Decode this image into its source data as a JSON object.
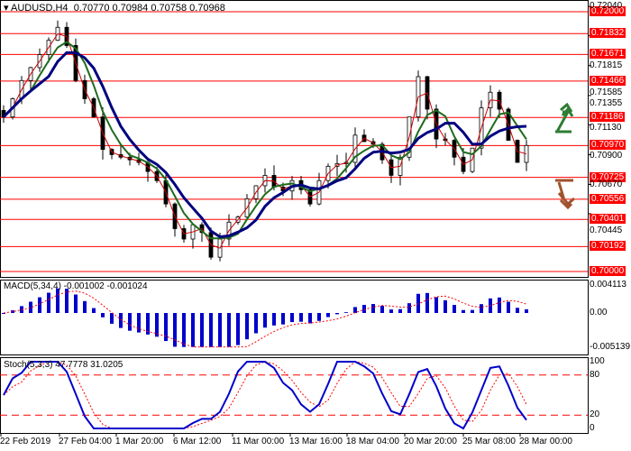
{
  "header": {
    "symbol": "AUDUSD,H4",
    "ohlc": "0.70770 0.70984 0.70758 0.70968"
  },
  "colors": {
    "level": "#ff0000",
    "bull_arrow": "#2e7d32",
    "bear_arrow": "#a0522d",
    "ma_slow": "#000080",
    "ma_mid": "#1e6b1e",
    "ma_fast": "#cc0000",
    "macd": "#0000cc",
    "stoch_main": "#0000cc",
    "stoch_signal": "#ff0000"
  },
  "chart_data": [
    {
      "type": "candlestick",
      "ylim": [
        0.7,
        0.72
      ],
      "axis_ticks": [
        "0.72040",
        "0.71815",
        "0.71585",
        "0.71355",
        "0.71130",
        "0.70900",
        "0.70670",
        "0.70445"
      ],
      "levels": [
        "0.72000",
        "0.71832",
        "0.71671",
        "0.71466",
        "0.71186",
        "0.70970",
        "0.70725",
        "0.70556",
        "0.70401",
        "0.70192",
        "0.70000"
      ],
      "close": [
        0.7119,
        0.7133,
        0.7147,
        0.7157,
        0.7167,
        0.7178,
        0.7188,
        0.7174,
        0.7147,
        0.7133,
        0.7119,
        0.7094,
        0.709,
        0.7088,
        0.7086,
        0.7084,
        0.7077,
        0.707,
        0.7052,
        0.7033,
        0.7025,
        0.7036,
        0.703,
        0.7011,
        0.7025,
        0.7038,
        0.7042,
        0.7056,
        0.7066,
        0.7074,
        0.7065,
        0.7062,
        0.707,
        0.7063,
        0.7052,
        0.707,
        0.7081,
        0.7083,
        0.7084,
        0.7105,
        0.71,
        0.7098,
        0.7086,
        0.7074,
        0.7088,
        0.7119,
        0.715,
        0.7125,
        0.7102,
        0.7101,
        0.7088,
        0.7077,
        0.7095,
        0.7126,
        0.7138,
        0.7125,
        0.7101,
        0.7084,
        0.7097
      ],
      "x_ticks": [
        "22 Feb 2019",
        "27 Feb 04:00",
        "1 Mar 20:00",
        "6 Mar 12:00",
        "11 Mar 00:00",
        "13 Mar 16:00",
        "18 Mar 04:00",
        "20 Mar 20:00",
        "25 Mar 08:00",
        "28 Mar 00:00"
      ]
    },
    {
      "type": "bar",
      "label": "MACD(5,34,4) -0.001002 -0.001024",
      "ylim": [
        -0.005139,
        0.004113
      ],
      "ticks": [
        "0.004113",
        "0.00",
        "-0.005139"
      ]
    },
    {
      "type": "line",
      "label": "Stoch(5,3,3) 47.7778 31.0205",
      "ylim": [
        0,
        100
      ],
      "ticks": [
        "100",
        "80",
        "20",
        "0"
      ],
      "levels": [
        80,
        20
      ]
    }
  ]
}
